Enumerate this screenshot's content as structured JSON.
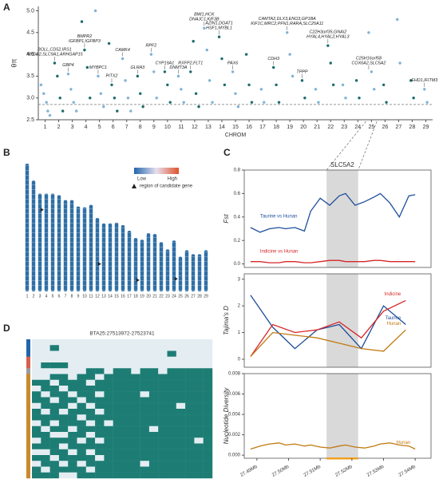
{
  "chart_data": [
    {
      "type": "scatter",
      "panel_label": "A",
      "y_label": "θπ",
      "x_label": "CHROM",
      "xlim": [
        0.5,
        29.5
      ],
      "ylim": [
        2.5,
        5.1
      ],
      "xticks": [
        1,
        2,
        3,
        4,
        5,
        6,
        7,
        8,
        9,
        10,
        11,
        12,
        13,
        14,
        15,
        16,
        17,
        18,
        19,
        20,
        21,
        22,
        23,
        24,
        25,
        26,
        27,
        28,
        29
      ],
      "yticks": [
        2.5,
        {
          "value": 3,
          "label": "3.0"
        },
        3.5,
        {
          "value": 4,
          "label": "4.0"
        },
        4.5,
        {
          "value": 5,
          "label": "5.0"
        }
      ],
      "colors": [
        "#1b6b6b",
        "#7fb2d5"
      ],
      "threshold": 2.85,
      "x": [
        0.7,
        0.9,
        1.1,
        1.2,
        1.35,
        1.7,
        1.9,
        2.1,
        2.3,
        2.7,
        2.9,
        3.1,
        3.3,
        3.7,
        3.9,
        4.1,
        4.3,
        4.7,
        4.9,
        5.1,
        5.3,
        5.7,
        5.9,
        6.1,
        6.3,
        6.7,
        6.9,
        7.1,
        7.3,
        7.8,
        8.0,
        8.2,
        8.8,
        9.0,
        9.2,
        9.8,
        10.0,
        10.2,
        10.8,
        11.0,
        11.2,
        11.7,
        11.9,
        12.1,
        12.3,
        12.7,
        12.9,
        13.1,
        13.3,
        13.8,
        14.0,
        14.2,
        14.8,
        15.0,
        15.2,
        15.8,
        16.0,
        16.2,
        16.9,
        17.1,
        17.8,
        18.0,
        18.2,
        18.8,
        19.0,
        19.2,
        19.9,
        20.1,
        20.9,
        21.1,
        21.8,
        22.0,
        22.2,
        22.9,
        23.1,
        23.9,
        24.1,
        24.8,
        25.0,
        25.2,
        25.9,
        26.1,
        26.9,
        27.1,
        27.9,
        28.1,
        28.9,
        29.1
      ],
      "y": [
        3.3,
        3.1,
        2.9,
        2.7,
        2.6,
        3.8,
        3.5,
        3.0,
        2.7,
        3.55,
        3.2,
        2.9,
        2.7,
        4.75,
        4.1,
        3.7,
        3.0,
        5.0,
        3.5,
        3.1,
        2.8,
        4.25,
        3.3,
        3.0,
        2.7,
        3.9,
        3.4,
        3.0,
        2.7,
        3.5,
        3.1,
        2.8,
        4.0,
        3.6,
        3.0,
        3.6,
        3.3,
        2.9,
        3.5,
        3.2,
        2.9,
        3.6,
        4.3,
        3.1,
        2.8,
        4.6,
        4.1,
        3.4,
        2.9,
        4.4,
        3.9,
        3.3,
        3.6,
        3.1,
        2.8,
        4.0,
        3.3,
        2.9,
        3.2,
        2.9,
        3.7,
        3.3,
        2.9,
        4.5,
        4.0,
        3.5,
        3.4,
        3.0,
        3.2,
        2.9,
        4.2,
        3.8,
        3.3,
        3.3,
        3.0,
        3.4,
        3.0,
        4.5,
        3.6,
        3.2,
        3.3,
        2.9,
        4.8,
        3.8,
        3.4,
        3.0,
        3.2,
        2.9
      ],
      "annotations": [
        {
          "lines": [
            "BOLL,CD52,IRS1",
            "NRGB2,SLC9A1,ARHGAP15"
          ],
          "x": 1.7,
          "y": 3.8
        },
        {
          "lines": [
            "GBP4"
          ],
          "x": 2.7,
          "y": 3.55
        },
        {
          "lines": [
            "BMPR2",
            "IGFBP1,IGFBP3"
          ],
          "x": 3.9,
          "y": 4.1
        },
        {
          "lines": [
            "MYBPC1"
          ],
          "x": 4.9,
          "y": 3.5
        },
        {
          "lines": [
            "PITX2"
          ],
          "x": 5.9,
          "y": 3.3
        },
        {
          "lines": [
            "CAMK4"
          ],
          "x": 6.7,
          "y": 3.9
        },
        {
          "lines": [
            "GLRA3"
          ],
          "x": 7.8,
          "y": 3.5
        },
        {
          "lines": [
            "RPF2"
          ],
          "x": 8.8,
          "y": 4.0
        },
        {
          "lines": [
            "CYP19A1"
          ],
          "x": 9.8,
          "y": 3.6
        },
        {
          "lines": [
            "DNMT3A"
          ],
          "x": 10.8,
          "y": 3.5
        },
        {
          "lines": [
            "RXFP2,FLT1"
          ],
          "x": 11.7,
          "y": 3.6
        },
        {
          "lines": [
            "BMI1,HCK",
            "DNAJC1,KIF3B"
          ],
          "x": 12.7,
          "y": 4.6
        },
        {
          "lines": [
            "AZIN1,DGAT1",
            "HSF1,MYBL1"
          ],
          "x": 13.8,
          "y": 4.4
        },
        {
          "lines": [
            "PAX6"
          ],
          "x": 14.8,
          "y": 3.6
        },
        {
          "lines": [
            "CDH3"
          ],
          "x": 17.8,
          "y": 3.7
        },
        {
          "lines": [
            "CAMTA2,DLX3,ENO3,GP1BA",
            "KIF1C,MRC2,PFN1,RARA,SLC25A11"
          ],
          "x": 18.8,
          "y": 4.5
        },
        {
          "lines": [
            "TPPP"
          ],
          "x": 19.9,
          "y": 3.4
        },
        {
          "lines": [
            "C22H3orf35,GNAI2",
            "HYAL4,HYAL2,HYAL3"
          ],
          "x": 21.8,
          "y": 4.2
        },
        {
          "lines": [
            "C25H16orf58",
            "COX6A2,SLC5A2"
          ],
          "x": 24.8,
          "y": 3.6
        },
        {
          "lines": [
            "EHD1,IFITM3"
          ],
          "x": 28.9,
          "y": 3.2
        }
      ]
    },
    {
      "type": "bar",
      "panel_label": "B",
      "color": "#2f6fa6",
      "categories": [
        "1",
        "2",
        "3",
        "4",
        "5",
        "6",
        "7",
        "8",
        "9",
        "10",
        "11",
        "12",
        "13",
        "14",
        "15",
        "16",
        "17",
        "18",
        "19",
        "20",
        "21",
        "22",
        "23",
        "24",
        "25",
        "26",
        "27",
        "28",
        "29"
      ],
      "values": [
        158,
        137,
        121,
        121,
        121,
        119,
        113,
        113,
        105,
        104,
        107,
        91,
        84,
        84,
        85,
        82,
        75,
        66,
        64,
        72,
        71,
        61,
        52,
        63,
        43,
        51,
        46,
        46,
        51
      ],
      "legend": {
        "low": "Low",
        "high": "High",
        "colors": [
          "#2166ac",
          "#e7e0f0",
          "#e0522a"
        ],
        "candidate": "region of candidate gene"
      },
      "candidates": [
        {
          "chrom": 4,
          "pos": 20
        },
        {
          "chrom": 13,
          "pos": 50
        },
        {
          "chrom": 19,
          "pos": 50
        },
        {
          "chrom": 25,
          "pos": 27.5
        }
      ]
    },
    {
      "type": "line",
      "panel_label": "C",
      "y_label": "Fst",
      "highlight": [
        27.512,
        27.522
      ],
      "highlight_label": "SLC5A2",
      "xlim": [
        27.486,
        27.545
      ],
      "ylim": [
        -0.03,
        0.8
      ],
      "yticks": [
        {
          "value": 0,
          "label": "0.0"
        },
        0.2,
        0.4,
        0.6,
        0.8
      ],
      "x": [
        27.488,
        27.491,
        27.494,
        27.497,
        27.499,
        27.502,
        27.505,
        27.507,
        27.51,
        27.513,
        27.516,
        27.518,
        27.521,
        27.524,
        27.527,
        27.529,
        27.532,
        27.535,
        27.538,
        27.54
      ],
      "series": [
        {
          "name": "Taurine vs Hunan",
          "color": "#1f4e9c",
          "values": [
            0.31,
            0.27,
            0.3,
            0.31,
            0.3,
            0.31,
            0.28,
            0.45,
            0.56,
            0.5,
            0.58,
            0.6,
            0.5,
            0.53,
            0.57,
            0.6,
            0.52,
            0.4,
            0.58,
            0.59
          ]
        },
        {
          "name": "Indicine vs Hunan",
          "color": "#d62728",
          "values": [
            0.02,
            0.02,
            0.01,
            0.01,
            0.02,
            0.02,
            0.01,
            0.01,
            0.02,
            0.03,
            0.03,
            0.02,
            0.02,
            0.02,
            0.03,
            0.03,
            0.02,
            0.02,
            0.02,
            0.02
          ]
        }
      ]
    },
    {
      "type": "line",
      "y_label": "Tajima's D",
      "highlight": [
        27.512,
        27.522
      ],
      "xlim": [
        27.486,
        27.545
      ],
      "ylim": [
        -0.3,
        3.2
      ],
      "yticks": [
        0,
        1,
        2,
        3
      ],
      "x": [
        27.488,
        27.495,
        27.502,
        27.509,
        27.516,
        27.523,
        27.53,
        27.537
      ],
      "series": [
        {
          "name": "Taurine",
          "color": "#1f4e9c",
          "values": [
            2.4,
            1.2,
            0.4,
            1.1,
            1.3,
            0.4,
            2.0,
            1.3
          ]
        },
        {
          "name": "Indicine",
          "color": "#d62728",
          "values": [
            0.1,
            1.3,
            1.0,
            1.1,
            1.4,
            0.8,
            1.8,
            2.2
          ]
        },
        {
          "name": "Hunan",
          "color": "#c07a12",
          "values": [
            0.1,
            1.0,
            0.9,
            0.8,
            0.6,
            0.4,
            0.3,
            1.1
          ]
        }
      ]
    },
    {
      "type": "line",
      "y_label": "Nucleotide Diversity",
      "highlight": [
        27.512,
        27.522
      ],
      "xlim": [
        27.486,
        27.545
      ],
      "ylim": [
        -0.0003,
        0.008
      ],
      "yticks": [
        {
          "value": 0,
          "label": "0.000"
        },
        0.002,
        0.004,
        0.006,
        0.008
      ],
      "xticks": [
        {
          "value": 27.49,
          "label": "27.49Mb"
        },
        {
          "value": 27.5,
          "label": "27.50Mb"
        },
        {
          "value": 27.51,
          "label": "27.51Mb"
        },
        {
          "value": 27.52,
          "label": "27.52Mb"
        },
        {
          "value": 27.53,
          "label": "27.53Mb"
        },
        {
          "value": 27.54,
          "label": "27.54Mb"
        }
      ],
      "x": [
        27.488,
        27.491,
        27.494,
        27.497,
        27.499,
        27.502,
        27.505,
        27.507,
        27.51,
        27.513,
        27.516,
        27.518,
        27.521,
        27.524,
        27.527,
        27.529,
        27.532,
        27.535,
        27.538,
        27.54
      ],
      "series": [
        {
          "name": "Hunan",
          "color": "#c07a12",
          "values": [
            0.0006,
            0.0009,
            0.0011,
            0.0012,
            0.001,
            0.0011,
            0.0009,
            0.001,
            0.0008,
            0.0007,
            0.0009,
            0.001,
            0.0008,
            0.0007,
            0.0009,
            0.0011,
            0.0012,
            0.001,
            0.0009,
            0.0006
          ]
        }
      ]
    },
    {
      "type": "heatmap",
      "panel_label": "D",
      "title": "BTA25:27513972-27523741",
      "colors": [
        "#e3edf2",
        "#1d7d74"
      ],
      "row_colors": [
        "#2166ac",
        "#2166ac",
        "#2166ac",
        "#d6604d",
        "#d6604d",
        "#9a9a9a",
        "#c98a2e",
        "#c98a2e",
        "#c98a2e",
        "#c98a2e",
        "#c98a2e",
        "#c98a2e",
        "#c98a2e",
        "#c98a2e",
        "#c98a2e",
        "#c98a2e",
        "#c98a2e",
        "#c98a2e",
        "#c98a2e",
        "#c98a2e",
        "#c98a2e",
        "#c98a2e",
        "#c98a2e",
        "#c98a2e"
      ],
      "rows": [
        [
          0,
          0,
          0,
          0,
          0,
          0,
          0,
          0,
          0,
          0,
          0,
          0,
          0,
          0,
          0,
          0,
          0,
          0,
          0,
          0
        ],
        [
          0,
          0,
          1,
          0,
          0,
          0,
          0,
          0,
          0,
          0,
          0,
          0,
          0,
          0,
          0,
          0,
          0,
          0,
          0,
          0
        ],
        [
          0,
          0,
          0,
          0,
          0,
          0,
          0,
          0,
          0,
          0,
          0,
          0,
          0,
          0,
          0,
          1,
          0,
          0,
          0,
          0
        ],
        [
          0,
          0,
          0,
          0,
          0,
          0,
          0,
          0,
          0,
          0,
          0,
          0,
          0,
          0,
          0,
          0,
          0,
          0,
          0,
          0
        ],
        [
          0,
          1,
          1,
          1,
          0,
          0,
          0,
          0,
          0,
          0,
          0,
          0,
          0,
          0,
          0,
          0,
          0,
          0,
          0,
          0
        ],
        [
          0,
          0,
          0,
          0,
          0,
          0,
          1,
          1,
          0,
          1,
          1,
          0,
          1,
          1,
          0,
          1,
          1,
          1,
          1,
          1
        ],
        [
          0,
          0,
          1,
          1,
          0,
          1,
          1,
          0,
          1,
          1,
          1,
          1,
          1,
          1,
          1,
          1,
          1,
          1,
          1,
          1
        ],
        [
          1,
          1,
          0,
          1,
          1,
          1,
          0,
          1,
          1,
          1,
          1,
          1,
          1,
          1,
          1,
          1,
          1,
          1,
          1,
          1
        ],
        [
          0,
          1,
          1,
          0,
          1,
          1,
          1,
          1,
          1,
          1,
          1,
          1,
          1,
          1,
          1,
          1,
          1,
          1,
          1,
          1
        ],
        [
          1,
          0,
          1,
          1,
          0,
          1,
          1,
          0,
          1,
          1,
          1,
          1,
          0,
          1,
          1,
          1,
          1,
          1,
          1,
          1
        ],
        [
          1,
          1,
          0,
          1,
          1,
          0,
          1,
          1,
          1,
          1,
          1,
          1,
          1,
          1,
          1,
          1,
          1,
          1,
          1,
          1
        ],
        [
          0,
          1,
          1,
          1,
          0,
          1,
          0,
          1,
          1,
          1,
          1,
          1,
          1,
          1,
          1,
          1,
          0,
          1,
          1,
          1
        ],
        [
          1,
          0,
          1,
          0,
          1,
          1,
          1,
          0,
          1,
          1,
          1,
          1,
          1,
          1,
          1,
          1,
          1,
          1,
          1,
          1
        ],
        [
          1,
          1,
          1,
          1,
          1,
          0,
          1,
          1,
          1,
          1,
          1,
          1,
          1,
          1,
          1,
          1,
          1,
          1,
          1,
          1
        ],
        [
          0,
          1,
          0,
          1,
          1,
          1,
          0,
          1,
          0,
          1,
          1,
          1,
          1,
          1,
          1,
          1,
          1,
          1,
          1,
          1
        ],
        [
          1,
          0,
          1,
          1,
          0,
          1,
          1,
          1,
          1,
          1,
          1,
          1,
          1,
          0,
          1,
          1,
          1,
          1,
          1,
          1
        ],
        [
          1,
          1,
          0,
          0,
          1,
          1,
          0,
          1,
          1,
          1,
          1,
          1,
          1,
          1,
          1,
          1,
          1,
          1,
          1,
          1
        ],
        [
          0,
          1,
          1,
          1,
          1,
          0,
          1,
          0,
          1,
          1,
          1,
          1,
          1,
          1,
          1,
          1,
          1,
          1,
          0,
          1
        ],
        [
          1,
          1,
          1,
          0,
          1,
          1,
          1,
          1,
          1,
          1,
          1,
          1,
          1,
          1,
          1,
          1,
          1,
          1,
          1,
          1
        ],
        [
          0,
          0,
          1,
          1,
          0,
          1,
          0,
          1,
          1,
          1,
          1,
          1,
          1,
          1,
          1,
          1,
          1,
          1,
          1,
          1
        ],
        [
          1,
          1,
          0,
          1,
          1,
          1,
          1,
          0,
          1,
          1,
          1,
          1,
          1,
          1,
          1,
          1,
          1,
          1,
          1,
          1
        ],
        [
          0,
          1,
          1,
          0,
          1,
          0,
          1,
          1,
          1,
          1,
          1,
          1,
          0,
          1,
          1,
          1,
          1,
          1,
          1,
          1
        ],
        [
          1,
          0,
          1,
          1,
          1,
          1,
          0,
          1,
          1,
          1,
          1,
          1,
          1,
          1,
          1,
          1,
          1,
          1,
          1,
          1
        ],
        [
          1,
          1,
          1,
          0,
          0,
          1,
          1,
          1,
          1,
          1,
          1,
          1,
          1,
          1,
          1,
          1,
          1,
          1,
          1,
          1
        ]
      ]
    }
  ]
}
